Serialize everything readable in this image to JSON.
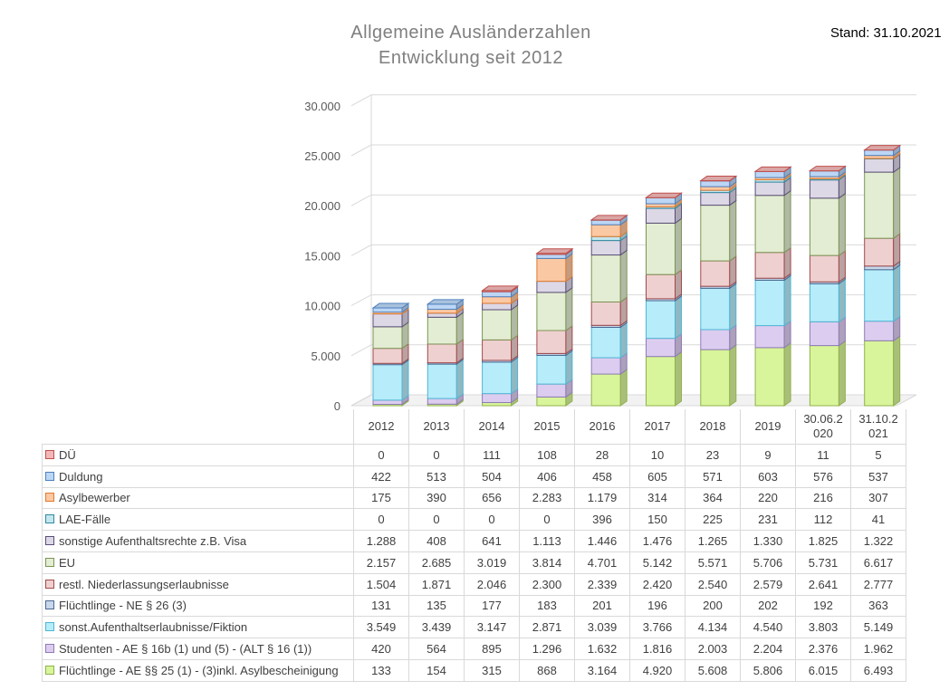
{
  "title_line1": "Allgemeine  Ausländerzahlen",
  "title_line2": "Entwicklung  seit 2012",
  "stand": "Stand: 31.10.2021",
  "chart_data": {
    "type": "bar",
    "stacked": true,
    "three_d": true,
    "title": "Allgemeine Ausländerzahlen Entwicklung seit 2012",
    "categories": [
      "2012",
      "2013",
      "2014",
      "2015",
      "2016",
      "2017",
      "2018",
      "2019",
      "30.06.2020",
      "31.10.2021"
    ],
    "category_labels": [
      [
        "2012"
      ],
      [
        "2013"
      ],
      [
        "2014"
      ],
      [
        "2015"
      ],
      [
        "2016"
      ],
      [
        "2017"
      ],
      [
        "2018"
      ],
      [
        "2019"
      ],
      [
        "30.06.2",
        "020"
      ],
      [
        "31.10.2",
        "021"
      ]
    ],
    "ylim": [
      0,
      30000
    ],
    "yticks": [
      0,
      5000,
      10000,
      15000,
      20000,
      25000,
      30000
    ],
    "ytick_labels": [
      "0",
      "5.000",
      "10.000",
      "15.000",
      "20.000",
      "25.000",
      "30.000"
    ],
    "grid": true,
    "legend": "data table below chart",
    "series": [
      {
        "name": "Flüchtlinge -  AE §§ 25 (1) - (3)inkl. Asylbescheinigung",
        "color": "#d9f59b",
        "edge": "#8fb24a",
        "values": [
          133,
          154,
          315,
          868,
          3164,
          4920,
          5608,
          5806,
          6015,
          6493
        ],
        "labels": [
          "133",
          "154",
          "315",
          "868",
          "3.164",
          "4.920",
          "5.608",
          "5.806",
          "6.015",
          "6.493"
        ]
      },
      {
        "name": "Studenten - AE § 16b (1) und (5) - (ALT § 16 (1))",
        "color": "#dccdf0",
        "edge": "#8e7bb5",
        "values": [
          420,
          564,
          895,
          1296,
          1632,
          1816,
          2003,
          2204,
          2376,
          1962
        ],
        "labels": [
          "420",
          "564",
          "895",
          "1.296",
          "1.632",
          "1.816",
          "2.003",
          "2.204",
          "2.376",
          "1.962"
        ]
      },
      {
        "name": "sonst.Aufenthaltserlaubnisse/Fiktion",
        "color": "#b7ecfa",
        "edge": "#4fb6d4",
        "values": [
          3549,
          3439,
          3147,
          2871,
          3039,
          3766,
          4134,
          4540,
          3803,
          5149
        ],
        "labels": [
          "3.549",
          "3.439",
          "3.147",
          "2.871",
          "3.039",
          "3.766",
          "4.134",
          "4.540",
          "3.803",
          "5.149"
        ]
      },
      {
        "name": "Flüchtlinge - NE § 26 (3)",
        "color": "#c9d7ea",
        "edge": "#4a6891",
        "values": [
          131,
          135,
          177,
          183,
          201,
          196,
          200,
          202,
          192,
          363
        ],
        "labels": [
          "131",
          "135",
          "177",
          "183",
          "201",
          "196",
          "200",
          "202",
          "192",
          "363"
        ]
      },
      {
        "name": "restl. Niederlassungserlaubnisse",
        "color": "#efd0d0",
        "edge": "#a04a4a",
        "values": [
          1504,
          1871,
          2046,
          2300,
          2339,
          2420,
          2540,
          2579,
          2641,
          2777
        ],
        "labels": [
          "1.504",
          "1.871",
          "2.046",
          "2.300",
          "2.339",
          "2.420",
          "2.540",
          "2.579",
          "2.641",
          "2.777"
        ]
      },
      {
        "name": "EU",
        "color": "#e3edd3",
        "edge": "#7c9455",
        "values": [
          2157,
          2685,
          3019,
          3814,
          4701,
          5142,
          5571,
          5706,
          5731,
          6617
        ],
        "labels": [
          "2.157",
          "2.685",
          "3.019",
          "3.814",
          "4.701",
          "5.142",
          "5.571",
          "5.706",
          "5.731",
          "6.617"
        ]
      },
      {
        "name": "sonstige Aufenthaltsrechte z.B. Visa",
        "color": "#ddd8e6",
        "edge": "#5b4d78",
        "values": [
          1288,
          408,
          641,
          1113,
          1446,
          1476,
          1265,
          1330,
          1825,
          1322
        ],
        "labels": [
          "1.288",
          "408",
          "641",
          "1.113",
          "1.446",
          "1.476",
          "1.265",
          "1.330",
          "1.825",
          "1.322"
        ]
      },
      {
        "name": "LAE-Fälle",
        "color": "#c5e6ee",
        "edge": "#2f8aa1",
        "values": [
          0,
          0,
          0,
          0,
          396,
          150,
          225,
          231,
          112,
          41
        ],
        "labels": [
          "0",
          "0",
          "0",
          "0",
          "396",
          "150",
          "225",
          "231",
          "112",
          "41"
        ]
      },
      {
        "name": "Asylbewerber",
        "color": "#fbc8a4",
        "edge": "#e07a2e",
        "values": [
          175,
          390,
          656,
          2283,
          1179,
          314,
          364,
          220,
          216,
          307
        ],
        "labels": [
          "175",
          "390",
          "656",
          "2.283",
          "1.179",
          "314",
          "364",
          "220",
          "216",
          "307"
        ]
      },
      {
        "name": "Duldung",
        "color": "#bcd6f5",
        "edge": "#4f81bd",
        "values": [
          422,
          513,
          504,
          406,
          458,
          605,
          571,
          603,
          576,
          537
        ],
        "labels": [
          "422",
          "513",
          "504",
          "406",
          "458",
          "605",
          "571",
          "603",
          "576",
          "537"
        ]
      },
      {
        "name": "DÜ",
        "color": "#f2b8b8",
        "edge": "#c0504d",
        "values": [
          0,
          0,
          111,
          108,
          28,
          10,
          23,
          9,
          11,
          5
        ],
        "labels": [
          "0",
          "0",
          "111",
          "108",
          "28",
          "10",
          "23",
          "9",
          "11",
          "5"
        ]
      }
    ]
  }
}
